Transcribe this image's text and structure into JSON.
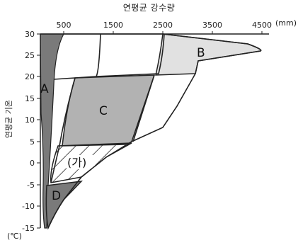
{
  "title": "연평균 강수량",
  "y_axis_label": "연평균 기온",
  "x_unit": "(mm)",
  "y_unit": "(℃)",
  "x_ticks": [
    "500",
    "1500",
    "2500",
    "3500",
    "4500"
  ],
  "y_ticks": [
    "30",
    "25",
    "20",
    "15",
    "10",
    "5",
    "0",
    "-5",
    "-10",
    "-15"
  ],
  "regions": [
    {
      "id": "A",
      "label": "A",
      "color": "#7a7a7a"
    },
    {
      "id": "B",
      "label": "B",
      "color": "#e1e1e1"
    },
    {
      "id": "C",
      "label": "C",
      "color": "#b2b2b2"
    },
    {
      "id": "gah",
      "label": "(가)",
      "color": "#ffffff"
    },
    {
      "id": "D",
      "label": "D",
      "color": "#7a7a7a"
    }
  ]
}
